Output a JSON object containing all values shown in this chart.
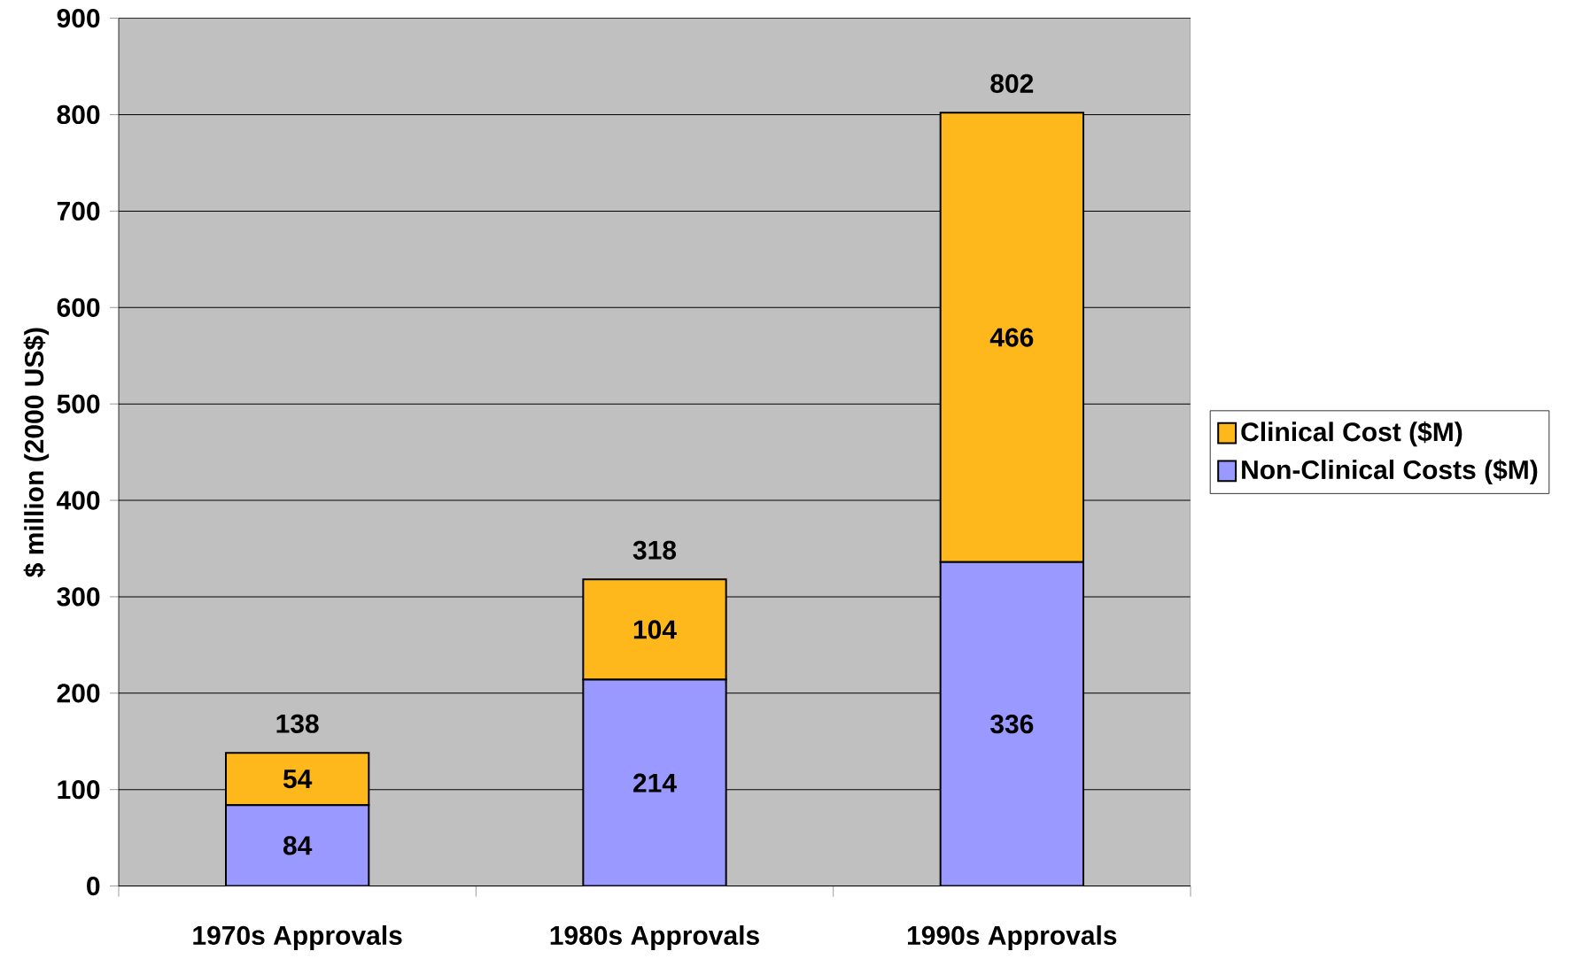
{
  "chart_data": {
    "type": "bar",
    "stacked": true,
    "ylabel": "$ million (2000 US$)",
    "categories": [
      "1970s Approvals",
      "1980s Approvals",
      "1990s Approvals"
    ],
    "series": [
      {
        "name": "Non-Clinical Costs ($M)",
        "color": "#9999ff",
        "values": [
          84,
          214,
          336
        ]
      },
      {
        "name": "Clinical Cost ($M)",
        "color": "#ffb81c",
        "values": [
          54,
          104,
          466
        ]
      }
    ],
    "totals": [
      "138",
      "318",
      "802"
    ],
    "data_labels": true,
    "ylim": [
      0,
      900
    ],
    "yticks": [
      0,
      100,
      200,
      300,
      400,
      500,
      600,
      700,
      800,
      900
    ],
    "grid": "y",
    "legend": "right"
  }
}
